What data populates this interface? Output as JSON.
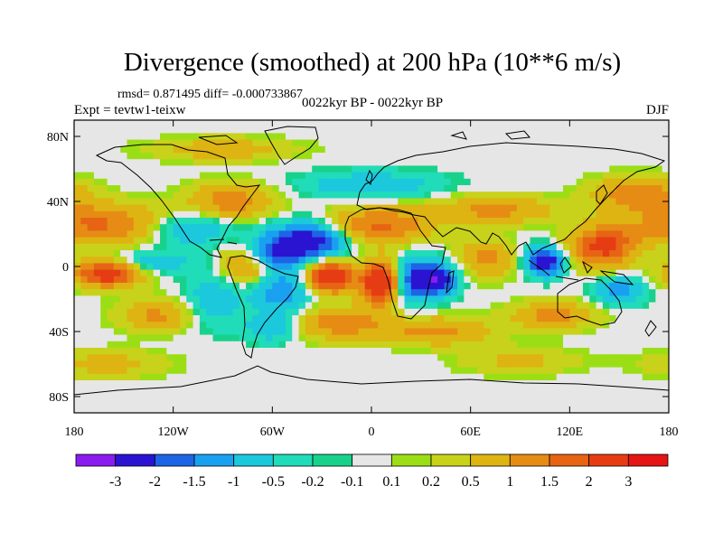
{
  "chart_data": {
    "type": "heatmap",
    "title": "Divergence (smoothed) at 200 hPa (10**6 m/s)",
    "stats_line": "rmsd= 0.871495 diff= -0.000733867",
    "left_label": "Expt = tevtw1-teixw",
    "center_label": "0022kyr BP - 0022kyr BP",
    "right_label": "DJF",
    "x_axis": {
      "range": [
        -180,
        180
      ],
      "ticks": [
        {
          "value": -180,
          "label": "180"
        },
        {
          "value": -120,
          "label": "120W"
        },
        {
          "value": -60,
          "label": "60W"
        },
        {
          "value": 0,
          "label": "0"
        },
        {
          "value": 60,
          "label": "60E"
        },
        {
          "value": 120,
          "label": "120E"
        },
        {
          "value": 180,
          "label": "180"
        }
      ]
    },
    "y_axis": {
      "range": [
        -90,
        90
      ],
      "ticks": [
        {
          "value": 80,
          "label": "80N"
        },
        {
          "value": 40,
          "label": "40N"
        },
        {
          "value": 0,
          "label": "0"
        },
        {
          "value": -40,
          "label": "40S"
        },
        {
          "value": -80,
          "label": "80S"
        }
      ]
    },
    "colorbar": {
      "colors": [
        "#8a1cf0",
        "#2a14d2",
        "#1e64e6",
        "#1aa0f0",
        "#1cc8dc",
        "#20dcb8",
        "#18d28c",
        "#e6e6e6",
        "#9cde16",
        "#c8d21a",
        "#ddb412",
        "#e68c14",
        "#e66414",
        "#e63c14",
        "#e61414"
      ],
      "labels": [
        "-3",
        "-2",
        "-1.5",
        "-1",
        "-0.5",
        "-0.2",
        "-0.1",
        "0.1",
        "0.2",
        "0.5",
        "1",
        "1.5",
        "2",
        "3"
      ]
    },
    "features": [
      {
        "lon": -165,
        "lat": 26,
        "amp": 1.6,
        "slon": 28,
        "slat": 9
      },
      {
        "lon": -160,
        "lat": -4,
        "amp": 2.6,
        "slon": 14,
        "slat": 6
      },
      {
        "lon": -110,
        "lat": 23,
        "amp": -1.1,
        "slon": 18,
        "slat": 7
      },
      {
        "lon": -130,
        "lat": -30,
        "amp": 1.1,
        "slon": 16,
        "slat": 7
      },
      {
        "lon": -135,
        "lat": 3,
        "amp": -0.9,
        "slon": 20,
        "slat": 5
      },
      {
        "lon": -85,
        "lat": 40,
        "amp": 1.3,
        "slon": 18,
        "slat": 8
      },
      {
        "lon": -75,
        "lat": 0,
        "amp": 1.4,
        "slon": 12,
        "slat": 8
      },
      {
        "lon": -95,
        "lat": -20,
        "amp": -0.9,
        "slon": 12,
        "slat": 12
      },
      {
        "lon": -55,
        "lat": -15,
        "amp": -1.5,
        "slon": 12,
        "slat": 10
      },
      {
        "lon": -40,
        "lat": 15,
        "amp": -2.8,
        "slon": 16,
        "slat": 8
      },
      {
        "lon": -60,
        "lat": 7,
        "amp": -1.6,
        "slon": 10,
        "slat": 6
      },
      {
        "lon": -25,
        "lat": -6,
        "amp": 2.9,
        "slon": 10,
        "slat": 7
      },
      {
        "lon": 5,
        "lat": -10,
        "amp": 3.0,
        "slon": 8,
        "slat": 9
      },
      {
        "lon": 5,
        "lat": 25,
        "amp": 1.6,
        "slon": 22,
        "slat": 8
      },
      {
        "lon": 25,
        "lat": -8,
        "amp": -1.8,
        "slon": 7,
        "slat": 10
      },
      {
        "lon": 40,
        "lat": -8,
        "amp": -2.8,
        "slon": 8,
        "slat": 7
      },
      {
        "lon": 75,
        "lat": 35,
        "amp": 1.2,
        "slon": 25,
        "slat": 6
      },
      {
        "lon": 70,
        "lat": 5,
        "amp": 1.2,
        "slon": 12,
        "slat": 8
      },
      {
        "lon": 105,
        "lat": 3,
        "amp": -2.8,
        "slon": 8,
        "slat": 6
      },
      {
        "lon": 140,
        "lat": 12,
        "amp": 2.2,
        "slon": 14,
        "slat": 9
      },
      {
        "lon": 150,
        "lat": -15,
        "amp": -1.4,
        "slon": 10,
        "slat": 6
      },
      {
        "lon": 110,
        "lat": -30,
        "amp": 1.2,
        "slon": 18,
        "slat": 6
      },
      {
        "lon": -20,
        "lat": -35,
        "amp": 1.3,
        "slon": 22,
        "slat": 7
      },
      {
        "lon": 40,
        "lat": -40,
        "amp": 1.2,
        "slon": 22,
        "slat": 6
      },
      {
        "lon": -60,
        "lat": -38,
        "amp": -1.0,
        "slon": 12,
        "slat": 6
      },
      {
        "lon": 0,
        "lat": 50,
        "amp": -0.9,
        "slon": 30,
        "slat": 6
      },
      {
        "lon": -90,
        "lat": 72,
        "amp": 0.8,
        "slon": 30,
        "slat": 5
      },
      {
        "lon": 160,
        "lat": 45,
        "amp": 1.4,
        "slon": 18,
        "slat": 7
      },
      {
        "lon": -160,
        "lat": -60,
        "amp": 0.7,
        "slon": 25,
        "slat": 6
      },
      {
        "lon": 90,
        "lat": -58,
        "amp": 0.6,
        "slon": 25,
        "slat": 6
      }
    ]
  }
}
